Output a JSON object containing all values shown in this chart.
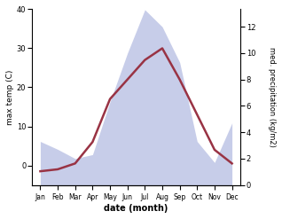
{
  "months": [
    "Jan",
    "Feb",
    "Mar",
    "Apr",
    "May",
    "Jun",
    "Jul",
    "Aug",
    "Sep",
    "Oct",
    "Nov",
    "Dec"
  ],
  "month_x": [
    1,
    2,
    3,
    4,
    5,
    6,
    7,
    8,
    9,
    10,
    11,
    12
  ],
  "temp": [
    -1.5,
    -1,
    0.5,
    6,
    17,
    22,
    27,
    30,
    22,
    13,
    4,
    0.5
  ],
  "precip_kg": [
    3.3,
    2.7,
    2.0,
    2.3,
    6.3,
    10.0,
    13.3,
    12.0,
    9.3,
    3.3,
    1.7,
    4.7
  ],
  "temp_color": "#993344",
  "precip_color": "#b0b8e0",
  "precip_alpha": 0.7,
  "left_ylabel": "max temp (C)",
  "right_ylabel": "med. precipitation (kg/m2)",
  "xlabel": "date (month)",
  "ylim_left": [
    -5,
    40
  ],
  "ylim_right": [
    0,
    13.333
  ],
  "yticks_left": [
    0,
    10,
    20,
    30,
    40
  ],
  "yticks_right": [
    0,
    2,
    4,
    6,
    8,
    10,
    12
  ],
  "xlim": [
    0.5,
    12.5
  ]
}
